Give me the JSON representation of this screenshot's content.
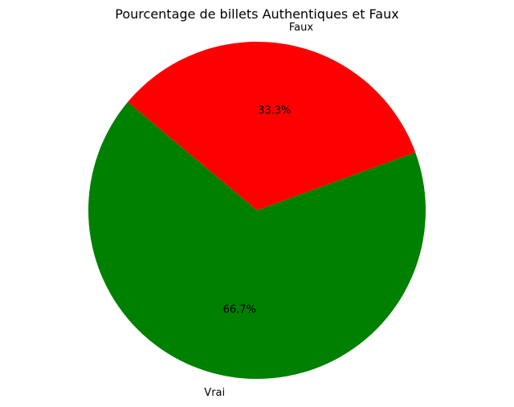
{
  "chart_data": {
    "type": "pie",
    "title": "Pourcentage de billets Authentiques et Faux",
    "categories": [
      "Vrai",
      "Faux"
    ],
    "values": [
      66.7,
      33.3
    ],
    "value_labels": [
      "66.7%",
      "33.3%"
    ],
    "colors": [
      "#008000",
      "#ff0000"
    ],
    "start_angle_deg": 140,
    "direction": "counterclockwise",
    "legend": "none"
  }
}
